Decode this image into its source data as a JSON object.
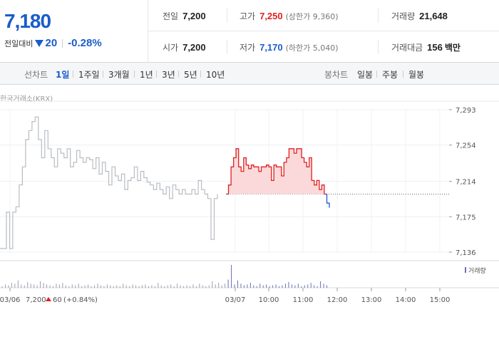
{
  "quote": {
    "price": "7,180",
    "change_label": "전일대비",
    "change_value": "20",
    "change_pct": "-0.28%",
    "direction_icon": "down-triangle-icon",
    "colors": {
      "up": "#e02020",
      "down": "#1a5ccc"
    }
  },
  "stats": {
    "prev_close": {
      "label": "전일",
      "value": "7,200"
    },
    "high": {
      "label": "고가",
      "value": "7,250",
      "sub": "(상한가 9,360)"
    },
    "volume": {
      "label": "거래량",
      "value": "21,648"
    },
    "open": {
      "label": "시가",
      "value": "7,200"
    },
    "low": {
      "label": "저가",
      "value": "7,170",
      "sub": "(하한가 5,040)"
    },
    "turnover": {
      "label": "거래대금",
      "value": "156",
      "unit": "백만"
    }
  },
  "tabs": {
    "line_label": "선차트",
    "line_tabs": [
      "1일",
      "1주일",
      "3개월",
      "1년",
      "3년",
      "5년",
      "10년"
    ],
    "active_line_tab": "1일",
    "candle_label": "봉차트",
    "candle_tabs": [
      "일봉",
      "주봉",
      "월봉"
    ]
  },
  "chart_source": "한국거래소(KRX)",
  "chart_data": {
    "type": "line",
    "y_ticks": [
      "7,293",
      "7,254",
      "7,214",
      "7,175",
      "7,136"
    ],
    "ylim": [
      7136,
      7293
    ],
    "reference_price": 7200,
    "x_labels": [
      "03/06",
      "03/07",
      "10:00",
      "11:00",
      "12:00",
      "13:00",
      "14:00",
      "15:00"
    ],
    "prev_day_note": {
      "date": "03/06",
      "price": "7,200",
      "change": "60",
      "pct": "(+0.84%)"
    },
    "volume_legend": "거래량",
    "series": [
      {
        "day": "03/06",
        "color": "#b8bcc2",
        "values": [
          7140,
          7140,
          7180,
          7140,
          7180,
          7186,
          7210,
          7230,
          7260,
          7270,
          7280,
          7285,
          7260,
          7240,
          7270,
          7250,
          7240,
          7230,
          7250,
          7245,
          7240,
          7250,
          7230,
          7235,
          7248,
          7240,
          7235,
          7240,
          7238,
          7228,
          7240,
          7222,
          7235,
          7225,
          7210,
          7230,
          7220,
          7215,
          7222,
          7205,
          7215,
          7218,
          7230,
          7215,
          7225,
          7218,
          7213,
          7210,
          7205,
          7212,
          7205,
          7200,
          7208,
          7195,
          7210,
          7205,
          7200,
          7205,
          7200,
          7200,
          7205,
          7200,
          7215,
          7205,
          7200,
          7195,
          7150,
          7195,
          7200
        ]
      },
      {
        "day": "03/07",
        "color": "#e02020",
        "values": [
          7200,
          7210,
          7230,
          7240,
          7250,
          7230,
          7225,
          7240,
          7232,
          7228,
          7232,
          7230,
          7230,
          7225,
          7230,
          7230,
          7232,
          7230,
          7215,
          7232,
          7230,
          7230,
          7220,
          7235,
          7240,
          7250,
          7250,
          7245,
          7250,
          7250,
          7240,
          7235,
          7230,
          7240,
          7215,
          7210,
          7215,
          7205,
          7210,
          7200,
          7190,
          7185
        ]
      }
    ],
    "volume": [
      2,
      4,
      3,
      6,
      5,
      9,
      4,
      3,
      7,
      5,
      4,
      3,
      8,
      6,
      4,
      3,
      2,
      5,
      4,
      6,
      3,
      2,
      4,
      3,
      5,
      2,
      3,
      4,
      2,
      3,
      5,
      3,
      2,
      4,
      3,
      2,
      3,
      2,
      5,
      3,
      2,
      4,
      3,
      2,
      3,
      4,
      2,
      3,
      2,
      6,
      3,
      2,
      3,
      4,
      2,
      5,
      3,
      2,
      3,
      2,
      4,
      2,
      5,
      3,
      2,
      3,
      8,
      4,
      6,
      3,
      5,
      10,
      28,
      4,
      9,
      5,
      3,
      4,
      6,
      3,
      2,
      5,
      3,
      4,
      2,
      3,
      4,
      2,
      3,
      5,
      7,
      4,
      3,
      5,
      2,
      3,
      4,
      6,
      3,
      2,
      8,
      5,
      3
    ]
  }
}
